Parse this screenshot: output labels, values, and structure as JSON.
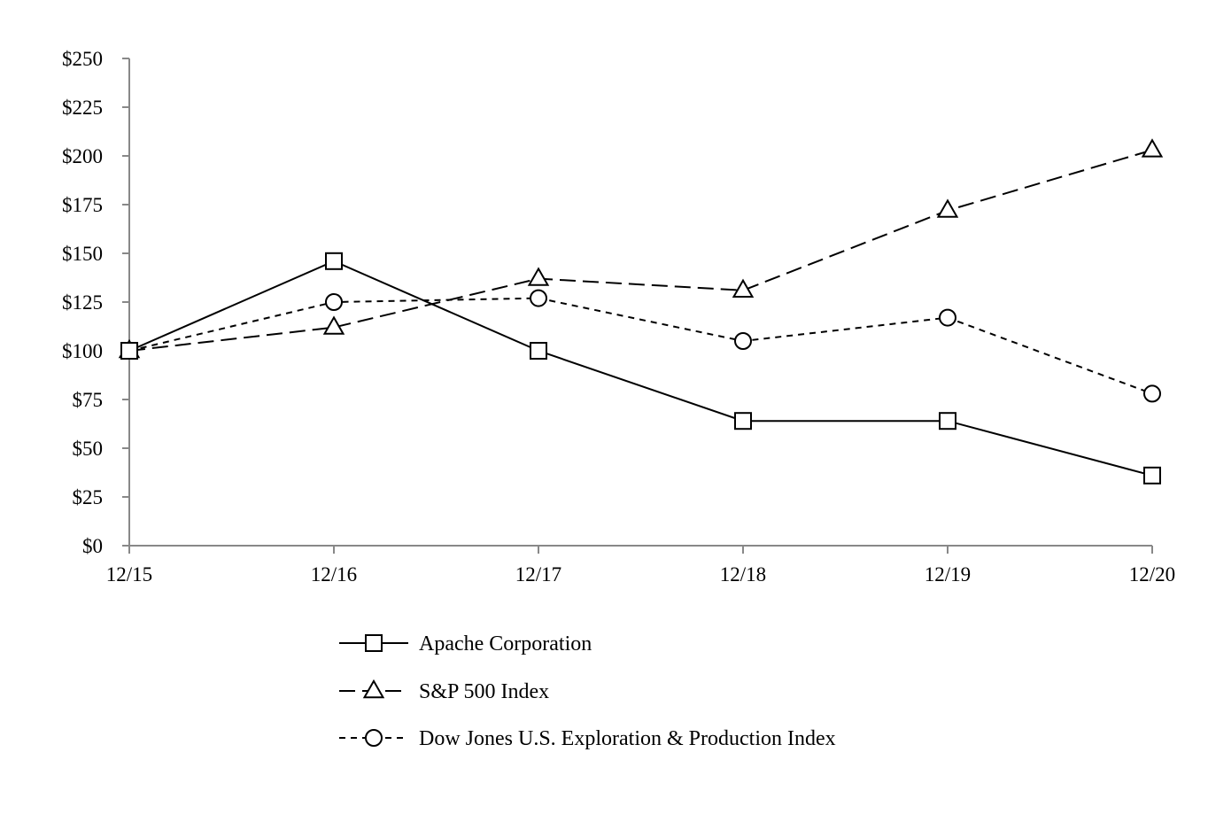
{
  "chart_data": {
    "type": "line",
    "title": "",
    "xlabel": "",
    "ylabel": "",
    "categories": [
      "12/15",
      "12/16",
      "12/17",
      "12/18",
      "12/19",
      "12/20"
    ],
    "ylim": [
      0,
      250
    ],
    "yticks": [
      0,
      25,
      50,
      75,
      100,
      125,
      150,
      175,
      200,
      225,
      250
    ],
    "ytick_labels": [
      "$0",
      "$25",
      "$50",
      "$75",
      "$100",
      "$125",
      "$150",
      "$175",
      "$200",
      "$225",
      "$250"
    ],
    "grid": false,
    "legend_position": "bottom-center",
    "line_color": "#000000",
    "axis_color": "#888888",
    "series": [
      {
        "name": "Apache Corporation",
        "marker": "square",
        "dash": "solid",
        "values": [
          100,
          146,
          100,
          64,
          64,
          36
        ]
      },
      {
        "name": "S&P 500 Index",
        "marker": "triangle",
        "dash": "long-dash",
        "values": [
          100,
          112,
          137,
          131,
          172,
          203
        ]
      },
      {
        "name": "Dow Jones U.S. Exploration & Production Index",
        "marker": "circle",
        "dash": "short-dash",
        "values": [
          100,
          125,
          127,
          105,
          117,
          78
        ]
      }
    ]
  }
}
